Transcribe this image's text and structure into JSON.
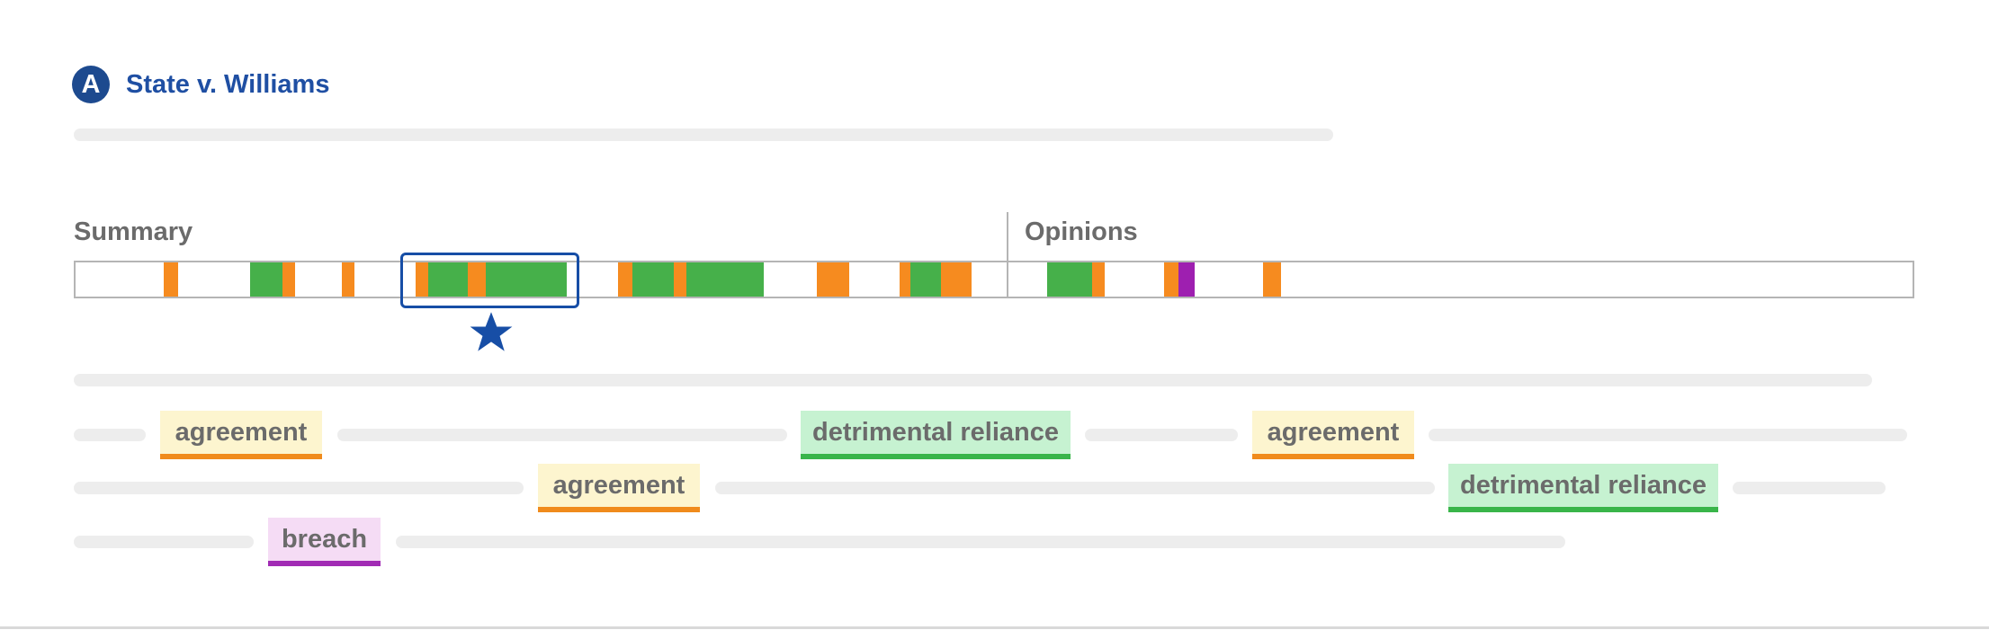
{
  "header": {
    "badge_letter": "A",
    "case_title": "State v. Williams"
  },
  "timeline": {
    "summary_label": "Summary",
    "opinions_label": "Opinions",
    "colors": {
      "agreement": "#f68b1f",
      "detrimental_reliance": "#46b04a",
      "breach": "#9e1fb0",
      "highlight": "#174ea6"
    }
  },
  "tags": {
    "row1": [
      "agreement",
      "detrimental reliance",
      "agreement"
    ],
    "row2": [
      "agreement",
      "detrimental reliance"
    ],
    "row3": [
      "breach"
    ]
  }
}
